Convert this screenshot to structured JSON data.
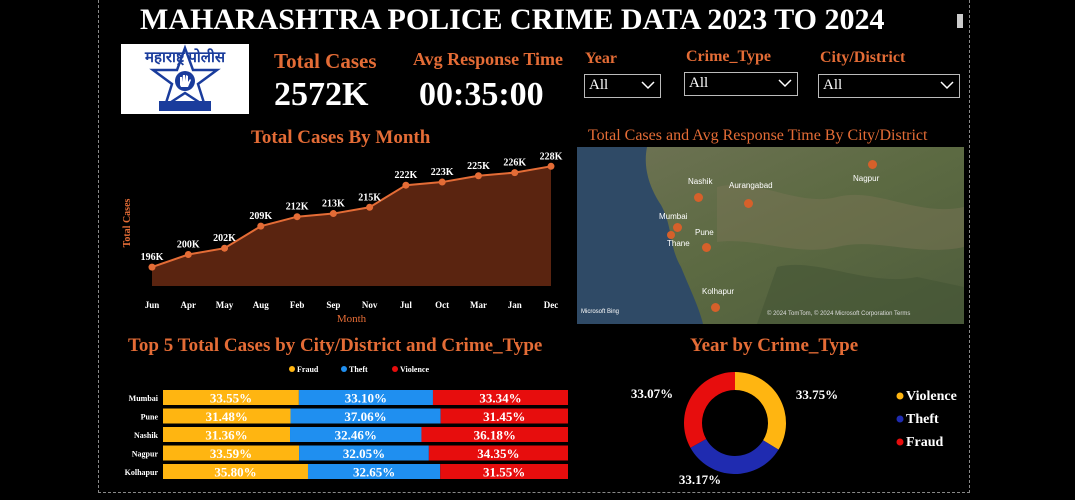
{
  "header": {
    "title": "MAHARASHTRA POLICE CRIME DATA 2023 TO 2024",
    "logo_text": "महाराष्ट्र पोलीस"
  },
  "kpis": {
    "total_cases_label": "Total Cases",
    "total_cases_value": "2572K",
    "avg_response_label": "Avg Response Time",
    "avg_response_value": "00:35:00"
  },
  "slicers": {
    "year": {
      "label": "Year",
      "value": "All"
    },
    "crime_type": {
      "label": "Crime_Type",
      "value": "All"
    },
    "city": {
      "label": "City/District",
      "value": "All"
    }
  },
  "map": {
    "title": "Total Cases and Avg Response Time By City/District",
    "cities": [
      "Nashik",
      "Aurangabad",
      "Nagpur",
      "Mumbai",
      "Thane",
      "Pune",
      "Kolhapur"
    ],
    "bing_label": "Microsoft Bing",
    "copyright": "© 2024 TomTom, © 2024 Microsoft Corporation Terms"
  },
  "colors": {
    "accent": "#e46c36",
    "area_fill": "#5a2410",
    "violence": "#ffb511",
    "theft": "#1f8ff0",
    "fraud": "#e70d0d",
    "donut_theft": "#1f2bb0"
  },
  "chart_data": [
    {
      "type": "area",
      "title": "Total Cases By Month",
      "xlabel": "Month",
      "ylabel": "Total Cases",
      "categories": [
        "Jun",
        "Apr",
        "May",
        "Aug",
        "Feb",
        "Sep",
        "Nov",
        "Jul",
        "Oct",
        "Mar",
        "Jan",
        "Dec"
      ],
      "values": [
        196,
        200,
        202,
        209,
        212,
        213,
        215,
        222,
        223,
        225,
        226,
        228
      ],
      "labels": [
        "196K",
        "200K",
        "202K",
        "209K",
        "212K",
        "213K",
        "215K",
        "222K",
        "223K",
        "225K",
        "226K",
        "228K"
      ],
      "ylim": [
        190,
        230
      ]
    },
    {
      "type": "bar",
      "stacked": "100%",
      "orientation": "horizontal",
      "title": "Top 5 Total Cases by City/District and Crime_Type",
      "legend": [
        "Fraud",
        "Theft",
        "Violence"
      ],
      "categories": [
        "Mumbai",
        "Pune",
        "Nashik",
        "Nagpur",
        "Kolhapur"
      ],
      "series": [
        {
          "name": "Fraud",
          "values": [
            33.55,
            31.48,
            31.36,
            33.59,
            35.8
          ],
          "labels": [
            "33.55%",
            "31.48%",
            "31.36%",
            "33.59%",
            "35.80%"
          ]
        },
        {
          "name": "Theft",
          "values": [
            33.1,
            37.06,
            32.46,
            32.05,
            32.65
          ],
          "labels": [
            "33.10%",
            "37.06%",
            "32.46%",
            "32.05%",
            "32.65%"
          ]
        },
        {
          "name": "Violence",
          "values": [
            33.34,
            31.45,
            36.18,
            34.35,
            31.55
          ],
          "labels": [
            "33.34%",
            "31.45%",
            "36.18%",
            "34.35%",
            "31.55%"
          ]
        }
      ]
    },
    {
      "type": "pie",
      "donut": true,
      "title": "Year by Crime_Type",
      "categories": [
        "Violence",
        "Theft",
        "Fraud"
      ],
      "values": [
        33.75,
        33.17,
        33.07
      ],
      "labels": [
        "33.75%",
        "33.17%",
        "33.07%"
      ]
    }
  ]
}
